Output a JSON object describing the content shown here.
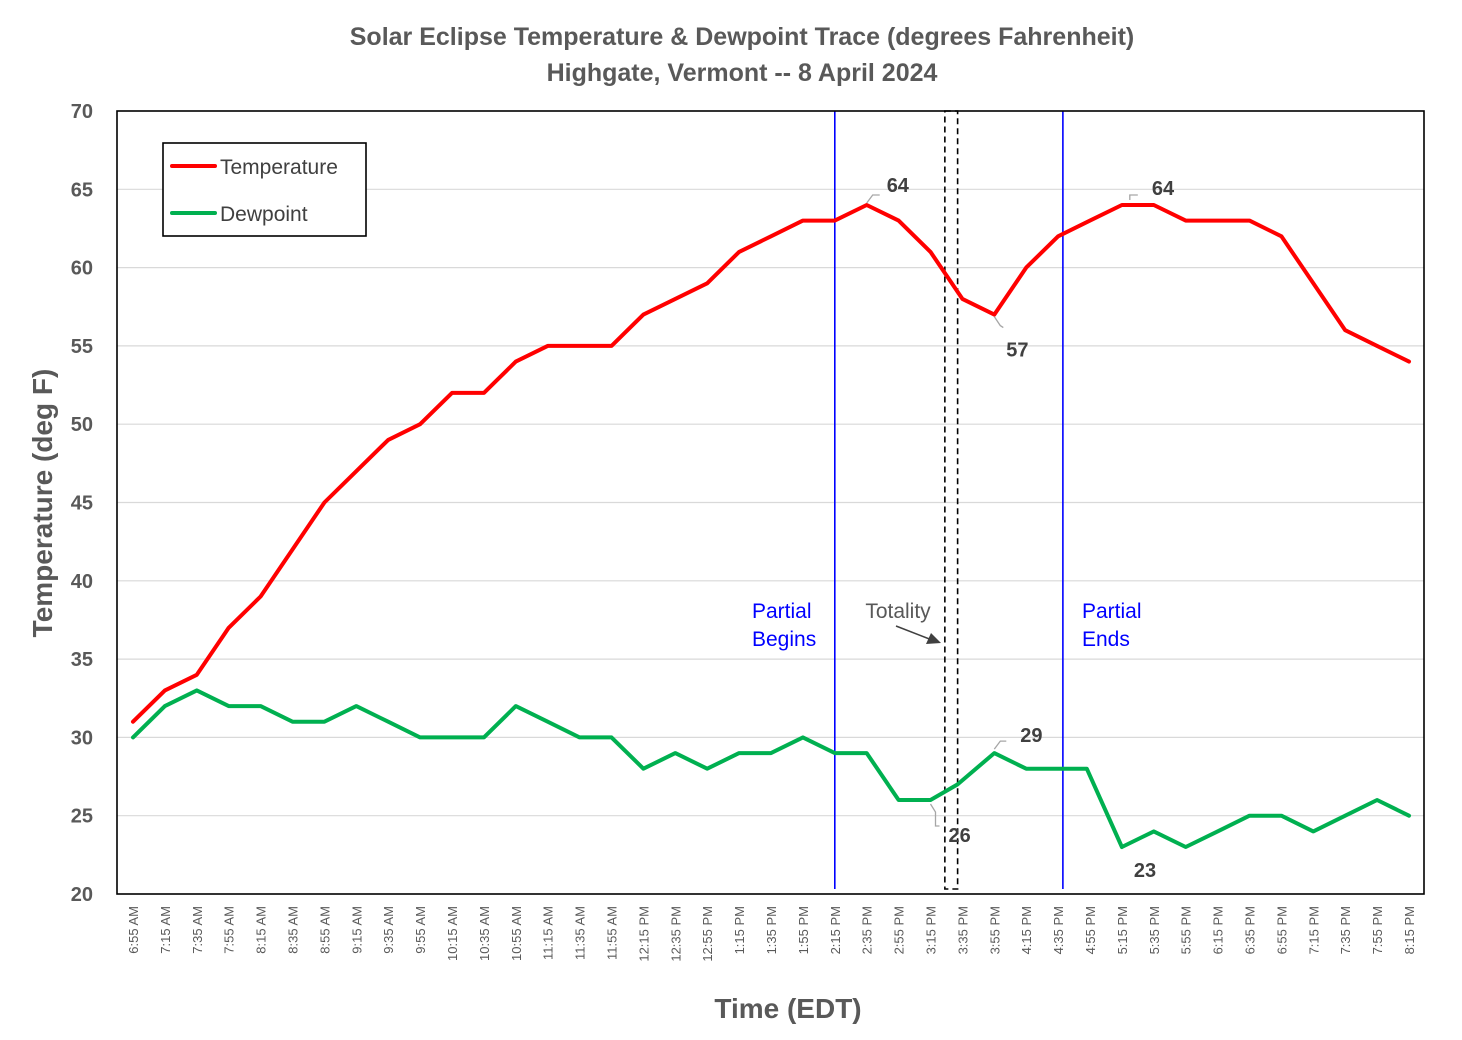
{
  "chart_data": {
    "type": "line",
    "title": "Solar Eclipse Temperature & Dewpoint Trace (degrees Fahrenheit)",
    "subtitle": "Highgate, Vermont -- 8 April 2024",
    "xlabel": "Time (EDT)",
    "ylabel": "Temperature (deg F)",
    "ylim": [
      20,
      70
    ],
    "yticks": [
      20,
      25,
      30,
      35,
      40,
      45,
      50,
      55,
      60,
      65,
      70
    ],
    "grid": "horizontal",
    "legend_position": "top-left",
    "categories": [
      "6:55 AM",
      "7:15 AM",
      "7:35 AM",
      "7:55 AM",
      "8:15 AM",
      "8:35 AM",
      "8:55 AM",
      "9:15 AM",
      "9:35 AM",
      "9:55 AM",
      "10:15 AM",
      "10:35 AM",
      "10:55 AM",
      "11:15 AM",
      "11:35 AM",
      "11:55 AM",
      "12:15 PM",
      "12:35 PM",
      "12:55 PM",
      "1:15 PM",
      "1:35 PM",
      "1:55 PM",
      "2:15 PM",
      "2:35 PM",
      "2:55 PM",
      "3:15 PM",
      "3:35 PM",
      "3:55 PM",
      "4:15 PM",
      "4:35 PM",
      "4:55 PM",
      "5:15 PM",
      "5:35 PM",
      "5:55 PM",
      "6:15 PM",
      "6:35 PM",
      "6:55 PM",
      "7:15 PM",
      "7:35 PM",
      "7:55 PM",
      "8:15 PM"
    ],
    "series": [
      {
        "name": "Temperature",
        "color": "#ff0000",
        "x": [
          0,
          1,
          2,
          3,
          4,
          5,
          6,
          7,
          8,
          9,
          10,
          11,
          12,
          13,
          14,
          15,
          16,
          17,
          18,
          19,
          20,
          21,
          22,
          23,
          24,
          25,
          26,
          27,
          28,
          29,
          30,
          31,
          32,
          33,
          34,
          35,
          36,
          37,
          38,
          39,
          40
        ],
        "values": [
          31,
          33,
          34,
          37,
          39,
          42,
          45,
          47,
          49,
          50,
          52,
          52,
          54,
          55,
          55,
          55,
          57,
          58,
          59,
          61,
          62,
          63,
          63,
          64,
          63,
          61,
          58,
          57,
          60,
          62,
          63,
          64,
          64,
          63,
          63,
          63,
          62,
          59,
          56,
          55,
          54
        ]
      },
      {
        "name": "Dewpoint",
        "color": "#00b050",
        "x": [
          0,
          1,
          2,
          3,
          4,
          5,
          6,
          7,
          8,
          9,
          10,
          11,
          12,
          13,
          14,
          15,
          16,
          17,
          18,
          19,
          20,
          21,
          22,
          23,
          24,
          25,
          25.85,
          27,
          28,
          29,
          29.9,
          31,
          32,
          33,
          34,
          35,
          36,
          37,
          38,
          39,
          40
        ],
        "values": [
          30,
          32,
          33,
          32,
          32,
          31,
          31,
          32,
          31,
          30,
          30,
          30,
          32,
          31,
          30,
          30,
          28,
          29,
          28,
          29,
          29,
          30,
          29,
          29,
          26,
          26,
          27,
          29,
          28,
          28,
          28,
          23,
          24,
          23,
          24,
          25,
          25,
          24,
          25,
          26,
          25
        ]
      }
    ],
    "data_labels": [
      {
        "series": "Temperature",
        "x": 23,
        "value": 64,
        "text": "64"
      },
      {
        "series": "Temperature",
        "x": 27,
        "value": 57,
        "text": "57"
      },
      {
        "series": "Temperature",
        "x": 31.5,
        "value": 64,
        "text": "64"
      },
      {
        "series": "Dewpoint",
        "x": 25,
        "value": 26,
        "text": "26"
      },
      {
        "series": "Dewpoint",
        "x": 27,
        "value": 29,
        "text": "29"
      },
      {
        "series": "Dewpoint",
        "x": 31,
        "value": 23,
        "text": "23"
      }
    ],
    "vertical_markers": [
      {
        "name": "partial-begins",
        "x": 22,
        "label_lines": [
          "Partial",
          "Begins"
        ],
        "color": "#0000ff",
        "style": "solid"
      },
      {
        "name": "partial-ends",
        "x": 29.15,
        "label_lines": [
          "Partial",
          "Ends"
        ],
        "color": "#0000ff",
        "style": "solid"
      }
    ],
    "totality": {
      "label": "Totality",
      "x_start": 25.45,
      "x_end": 25.85,
      "color": "#000000",
      "style": "dashed"
    }
  }
}
